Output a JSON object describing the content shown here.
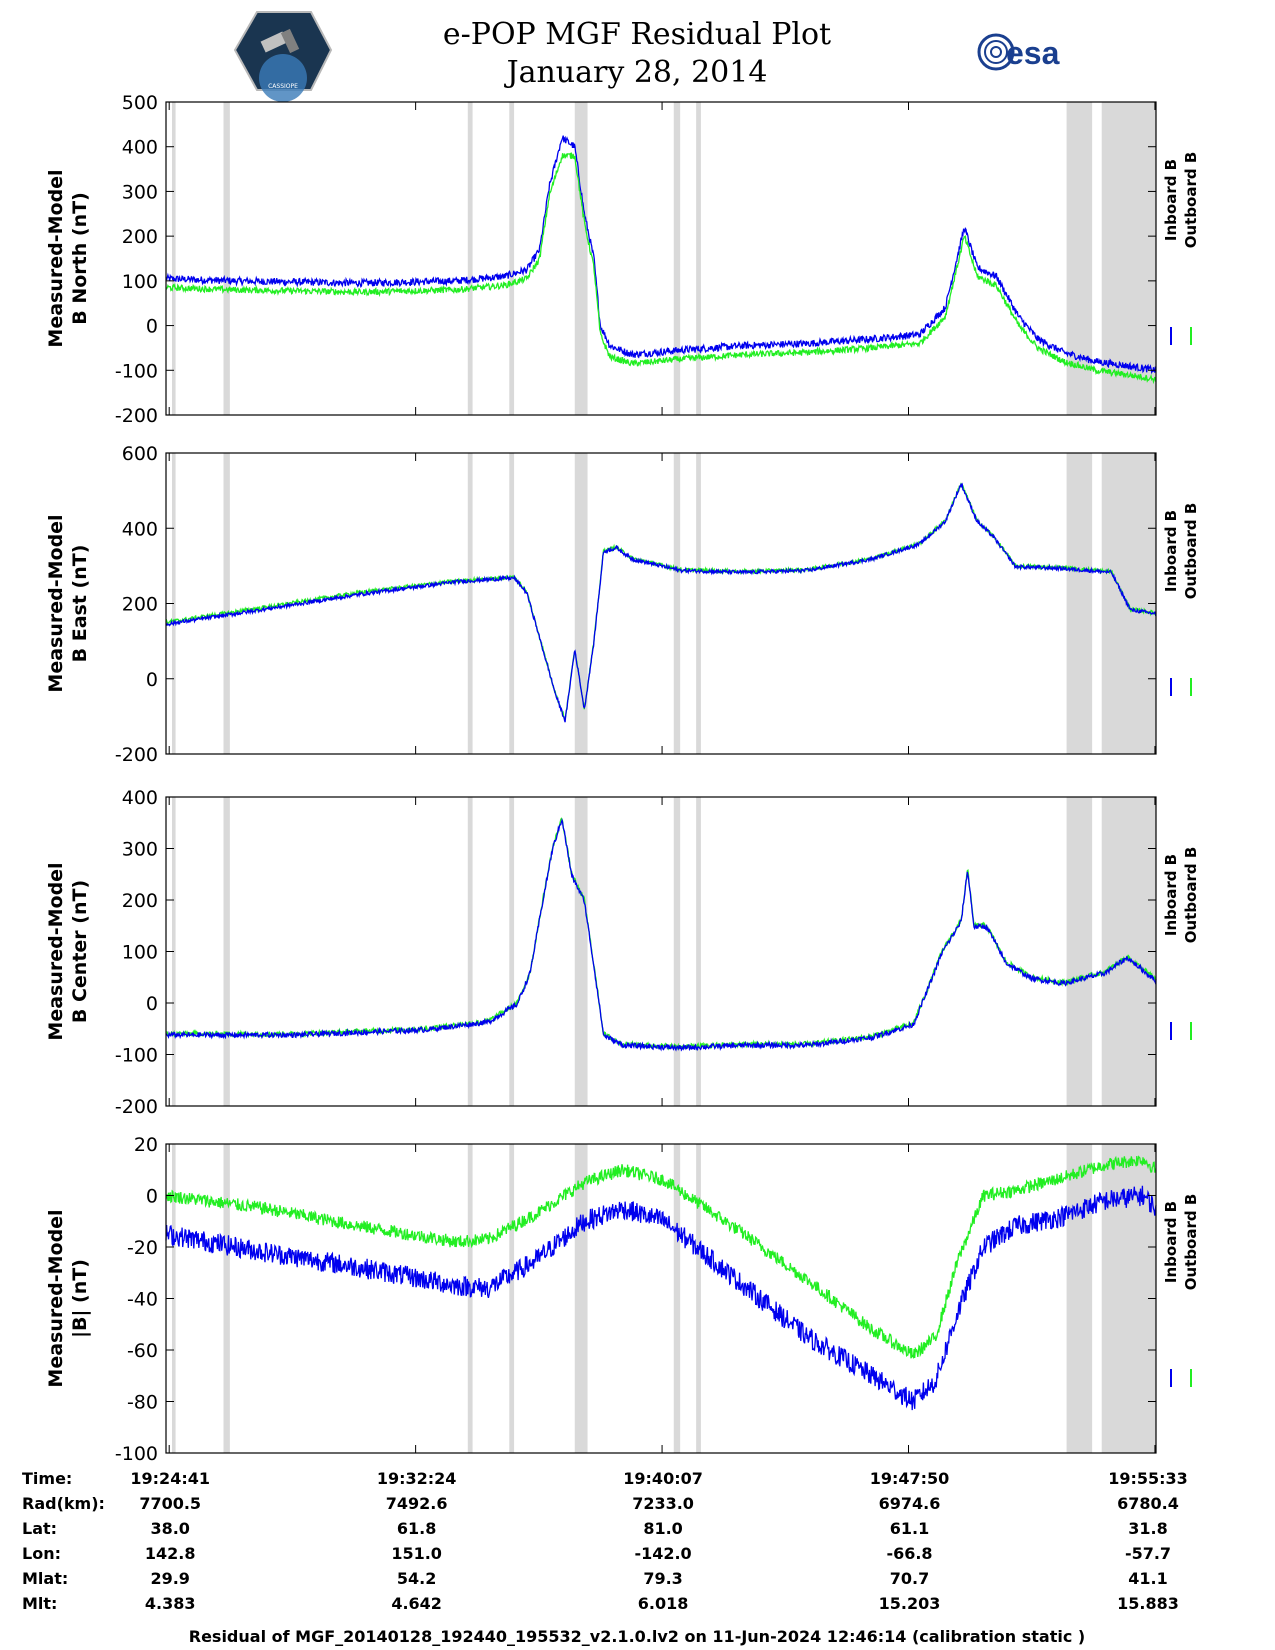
{
  "header": {
    "title_line1": "e-POP MGF Residual Plot",
    "title_line2": "January 28, 2014",
    "esa_logo_text": "esa",
    "mission_logo_text": "CASSIOPE"
  },
  "footer": "Residual of MGF_20140128_192440_195532_v2.1.0.lv2 on 11-Jun-2024 12:46:14 (calibration static )",
  "info_table": {
    "row_labels": [
      "Time:",
      "Rad(km):",
      "Lat:",
      "Lon:",
      "Mlat:",
      "Mlt:"
    ],
    "columns": [
      [
        "19:24:41",
        "7700.5",
        "38.0",
        "142.8",
        "29.9",
        "4.383"
      ],
      [
        "19:32:24",
        "7492.6",
        "61.8",
        "151.0",
        "54.2",
        "4.642"
      ],
      [
        "19:40:07",
        "7233.0",
        "81.0",
        "-142.0",
        "79.3",
        "6.018"
      ],
      [
        "19:47:50",
        "6974.6",
        "61.1",
        "-66.8",
        "70.7",
        "15.203"
      ],
      [
        "19:55:33",
        "6780.4",
        "31.8",
        "-57.7",
        "41.1",
        "15.883"
      ]
    ]
  },
  "colors": {
    "inboard": "#0000ee",
    "outboard": "#22ee22",
    "shade": "#d9d9d9"
  },
  "chart_data": [
    {
      "type": "line",
      "ylabel_line1": "Measured-Model",
      "ylabel_line2": "B North (nT)",
      "ylim": [
        -200,
        500
      ],
      "yticks": [
        500,
        400,
        300,
        200,
        100,
        0,
        -100,
        -200
      ],
      "x_unit": "minutes since 19:24:41",
      "xlim": [
        -0.1,
        30.9
      ],
      "legend": [
        "Inboard B",
        "Outboard B"
      ],
      "series": [
        {
          "name": "Inboard B",
          "noise": 8,
          "x": [
            -0.1,
            2,
            6,
            9,
            10.5,
            11.2,
            11.6,
            11.9,
            12.3,
            12.7,
            13.0,
            13.3,
            13.5,
            13.8,
            14.5,
            16,
            18,
            20,
            22,
            23.5,
            24.3,
            24.9,
            25.3,
            25.9,
            26.6,
            27.2,
            28,
            29,
            30,
            30.9
          ],
          "y": [
            105,
            100,
            95,
            100,
            110,
            125,
            170,
            310,
            420,
            400,
            250,
            150,
            0,
            -45,
            -65,
            -55,
            -45,
            -40,
            -30,
            -20,
            40,
            220,
            130,
            110,
            20,
            -30,
            -60,
            -80,
            -90,
            -100
          ]
        },
        {
          "name": "Outboard B",
          "noise": 7,
          "x": [
            -0.1,
            2,
            6,
            9,
            10.5,
            11.2,
            11.6,
            11.9,
            12.3,
            12.7,
            13.0,
            13.3,
            13.5,
            13.8,
            14.5,
            16,
            18,
            20,
            22,
            23.5,
            24.3,
            24.9,
            25.3,
            25.9,
            26.6,
            27.2,
            28,
            29,
            30,
            30.9
          ],
          "y": [
            85,
            80,
            75,
            80,
            90,
            105,
            150,
            290,
            380,
            380,
            230,
            130,
            -20,
            -70,
            -85,
            -75,
            -65,
            -60,
            -50,
            -40,
            20,
            200,
            110,
            90,
            0,
            -50,
            -80,
            -100,
            -110,
            -120
          ]
        }
      ]
    },
    {
      "type": "line",
      "ylabel_line1": "Measured-Model",
      "ylabel_line2": "B East (nT)",
      "ylim": [
        -200,
        600
      ],
      "yticks": [
        600,
        400,
        200,
        0,
        -200
      ],
      "x_unit": "minutes since 19:24:41",
      "xlim": [
        -0.1,
        30.9
      ],
      "legend": [
        "Inboard B",
        "Outboard B"
      ],
      "series": [
        {
          "name": "Outboard B",
          "noise": 5,
          "x": [
            -0.1,
            3,
            6,
            9,
            10.8,
            11.2,
            11.7,
            12.1,
            12.4,
            12.7,
            13.0,
            13.3,
            13.6,
            14.0,
            14.5,
            16,
            18,
            20,
            22,
            23.5,
            24.3,
            24.8,
            25.3,
            25.8,
            26.5,
            28,
            29.5,
            30.1,
            30.9
          ],
          "y": [
            150,
            190,
            230,
            260,
            270,
            230,
            80,
            -40,
            -110,
            80,
            -80,
            100,
            340,
            350,
            320,
            290,
            285,
            290,
            320,
            360,
            420,
            520,
            420,
            380,
            300,
            295,
            285,
            185,
            175
          ]
        },
        {
          "name": "Inboard B",
          "noise": 5,
          "x": [
            -0.1,
            3,
            6,
            9,
            10.8,
            11.2,
            11.7,
            12.1,
            12.4,
            12.7,
            13.0,
            13.3,
            13.6,
            14.0,
            14.5,
            16,
            18,
            20,
            22,
            23.5,
            24.3,
            24.8,
            25.3,
            25.8,
            26.5,
            28,
            29.5,
            30.1,
            30.9
          ],
          "y": [
            145,
            185,
            225,
            258,
            268,
            228,
            78,
            -42,
            -112,
            78,
            -82,
            98,
            338,
            348,
            318,
            288,
            283,
            288,
            318,
            358,
            418,
            518,
            418,
            378,
            298,
            293,
            283,
            183,
            173
          ]
        }
      ]
    },
    {
      "type": "line",
      "ylabel_line1": "Measured-Model",
      "ylabel_line2": "B Center (nT)",
      "ylim": [
        -200,
        400
      ],
      "yticks": [
        400,
        300,
        200,
        100,
        0,
        -100,
        -200
      ],
      "x_unit": "minutes since 19:24:41",
      "xlim": [
        -0.1,
        30.9
      ],
      "legend": [
        "Inboard B",
        "Outboard B"
      ],
      "series": [
        {
          "name": "Outboard B",
          "noise": 5,
          "x": [
            -0.1,
            4,
            8,
            10,
            10.9,
            11.3,
            11.7,
            12.0,
            12.3,
            12.6,
            13.0,
            13.4,
            13.6,
            14.2,
            16,
            18,
            20,
            22,
            23.3,
            23.7,
            24.2,
            24.8,
            25.0,
            25.2,
            25.6,
            26.2,
            27,
            28,
            29.3,
            30,
            30.9
          ],
          "y": [
            -60,
            -60,
            -50,
            -35,
            0,
            60,
            200,
            300,
            360,
            250,
            200,
            30,
            -60,
            -80,
            -85,
            -80,
            -80,
            -65,
            -40,
            20,
            100,
            160,
            260,
            150,
            150,
            80,
            50,
            40,
            60,
            90,
            45
          ]
        },
        {
          "name": "Inboard B",
          "noise": 5,
          "x": [
            -0.1,
            4,
            8,
            10,
            10.9,
            11.3,
            11.7,
            12.0,
            12.3,
            12.6,
            13.0,
            13.4,
            13.6,
            14.2,
            16,
            18,
            20,
            22,
            23.3,
            23.7,
            24.2,
            24.8,
            25.0,
            25.2,
            25.6,
            26.2,
            27,
            28,
            29.3,
            30,
            30.9
          ],
          "y": [
            -62,
            -62,
            -52,
            -37,
            -2,
            58,
            198,
            298,
            358,
            248,
            198,
            28,
            -62,
            -82,
            -87,
            -82,
            -82,
            -67,
            -42,
            18,
            98,
            158,
            258,
            148,
            148,
            78,
            48,
            38,
            58,
            88,
            43
          ]
        }
      ]
    },
    {
      "type": "line",
      "ylabel_line1": "Measured-Model",
      "ylabel_line2": "|B| (nT)",
      "ylim": [
        -100,
        20
      ],
      "yticks": [
        20,
        0,
        -20,
        -40,
        -60,
        -80,
        -100
      ],
      "x_unit": "minutes since 19:24:41",
      "xlim": [
        -0.1,
        30.9
      ],
      "legend": [
        "Inboard B",
        "Outboard B"
      ],
      "series": [
        {
          "name": "Outboard B",
          "noise": 2.5,
          "x": [
            -0.1,
            3,
            6,
            9,
            10,
            11.5,
            13.0,
            14.2,
            15.5,
            18,
            20,
            22,
            23.3,
            24.0,
            24.7,
            25.5,
            26.5,
            28,
            29.3,
            30.5,
            30.9
          ],
          "y": [
            0,
            -5,
            -12,
            -18,
            -17,
            -7,
            5,
            10,
            6,
            -15,
            -33,
            -52,
            -62,
            -55,
            -25,
            0,
            2,
            7,
            12,
            14,
            10
          ]
        },
        {
          "name": "Inboard B",
          "noise": 4,
          "x": [
            -0.1,
            3,
            6,
            9,
            10,
            11.5,
            13.0,
            14.2,
            15.5,
            18,
            20,
            22,
            23.3,
            24.0,
            24.7,
            25.5,
            26.5,
            28,
            29.3,
            30.5,
            30.9
          ],
          "y": [
            -15,
            -22,
            -28,
            -35,
            -36,
            -25,
            -10,
            -5,
            -10,
            -35,
            -55,
            -70,
            -80,
            -72,
            -45,
            -20,
            -12,
            -8,
            -2,
            0,
            -5
          ]
        }
      ]
    }
  ],
  "gap_intervals_minutes": [
    [
      -0.1,
      0.2
    ],
    [
      1.7,
      1.9
    ],
    [
      9.35,
      9.5
    ],
    [
      10.65,
      10.8
    ],
    [
      12.7,
      13.1
    ],
    [
      15.8,
      16.0
    ],
    [
      16.5,
      16.65
    ],
    [
      28.1,
      28.9
    ],
    [
      29.2,
      30.9
    ]
  ],
  "xticks_minutes": [
    0,
    7.7167,
    15.4333,
    23.15,
    30.8667
  ]
}
